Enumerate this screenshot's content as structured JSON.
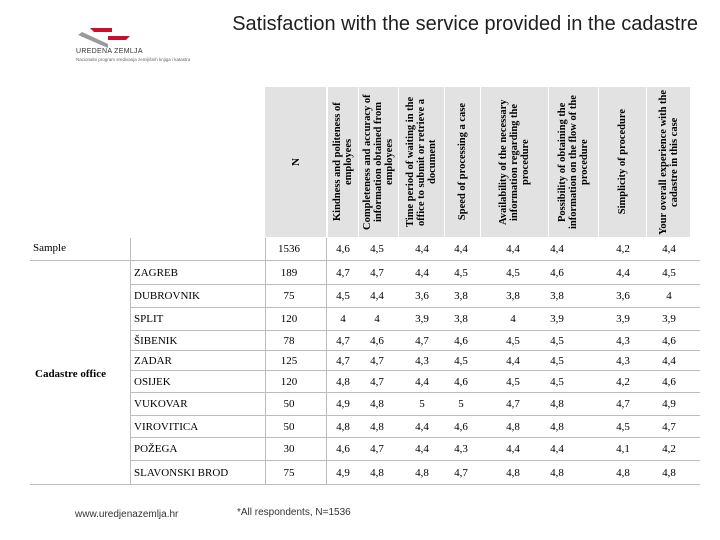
{
  "header": {
    "title": "Satisfaction with the service provided in the cadastre",
    "logo_name": "UREDENA ZEMLJA",
    "logo_subtitle": "Nacionalni program sredivanja zemljišnih knjiga i katastra"
  },
  "table": {
    "n_label": "N",
    "columns": [
      "Kindness and politeness of employees",
      "Completeness and accuracy of information obtained from employees",
      "Time period of waiting in the office to submit or retrieve a document",
      "Speed of processing a case",
      "Availability of the necessary information regarding the procedure",
      "Possibility of obtaining the information on the flow of the procedure",
      "Simplicity of procedure",
      "Your overall experience with the cadastre in this case"
    ],
    "sample": {
      "label": "Sample",
      "n": "1536",
      "values": [
        "4,6",
        "4,5",
        "4,4",
        "4,4",
        "4,4",
        "4,4",
        "4,2",
        "4,4"
      ]
    },
    "group_label": "Cadastre office",
    "offices": [
      {
        "name": "ZAGREB",
        "n": "189",
        "values": [
          "4,7",
          "4,7",
          "4,4",
          "4,5",
          "4,5",
          "4,6",
          "4,4",
          "4,5"
        ]
      },
      {
        "name": "DUBROVNIK",
        "n": "75",
        "values": [
          "4,5",
          "4,4",
          "3,6",
          "3,8",
          "3,8",
          "3,8",
          "3,6",
          "4"
        ]
      },
      {
        "name": "SPLIT",
        "n": "120",
        "values": [
          "4",
          "4",
          "3,9",
          "3,8",
          "4",
          "3,9",
          "3,9",
          "3,9"
        ]
      },
      {
        "name": "ŠIBENIK",
        "n": "78",
        "values": [
          "4,7",
          "4,6",
          "4,7",
          "4,6",
          "4,5",
          "4,5",
          "4,3",
          "4,6"
        ]
      },
      {
        "name": "ZADAR",
        "n": "125",
        "values": [
          "4,7",
          "4,7",
          "4,3",
          "4,5",
          "4,4",
          "4,5",
          "4,3",
          "4,4"
        ]
      },
      {
        "name": "OSIJEK",
        "n": "120",
        "values": [
          "4,8",
          "4,7",
          "4,4",
          "4,6",
          "4,5",
          "4,5",
          "4,2",
          "4,6"
        ]
      },
      {
        "name": "VUKOVAR",
        "n": "50",
        "values": [
          "4,9",
          "4,8",
          "5",
          "5",
          "4,7",
          "4,8",
          "4,7",
          "4,9"
        ]
      },
      {
        "name": "VIROVITICA",
        "n": "50",
        "values": [
          "4,8",
          "4,8",
          "4,4",
          "4,6",
          "4,8",
          "4,8",
          "4,5",
          "4,7"
        ]
      },
      {
        "name": "POŽEGA",
        "n": "30",
        "values": [
          "4,6",
          "4,7",
          "4,4",
          "4,3",
          "4,4",
          "4,4",
          "4,1",
          "4,2"
        ]
      },
      {
        "name": "SLAVONSKI BROD",
        "n": "75",
        "values": [
          "4,9",
          "4,8",
          "4,8",
          "4,7",
          "4,8",
          "4,8",
          "4,8",
          "4,8"
        ]
      }
    ]
  },
  "footer": {
    "url": "www.uredjenazemlja.hr",
    "note": "*All respondents, N=1536"
  }
}
